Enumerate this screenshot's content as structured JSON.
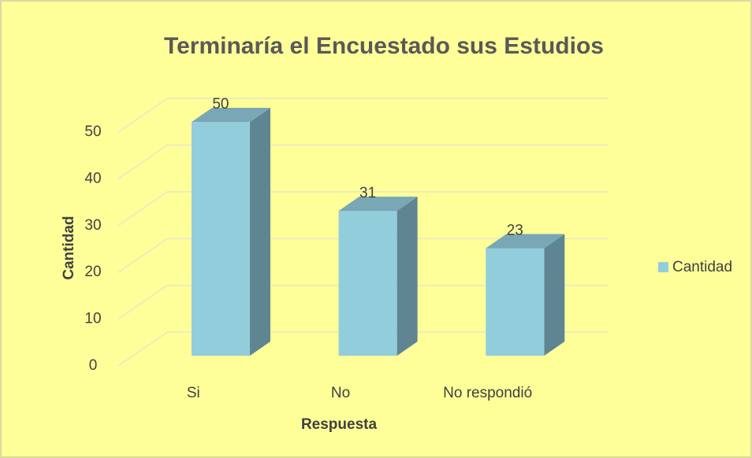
{
  "chart_data": {
    "type": "bar3d",
    "title": "Terminaría el Encuestado sus Estudios",
    "xlabel": "Respuesta",
    "ylabel": "Cantidad",
    "categories": [
      "Si",
      "No",
      "No respondió"
    ],
    "series": [
      {
        "name": "Cantidad",
        "color": "#92cddc",
        "values": [
          50,
          31,
          23
        ]
      }
    ],
    "ylim": [
      0,
      50
    ],
    "yticks": [
      0,
      10,
      20,
      30,
      40,
      50
    ],
    "grid": true,
    "legend": "right"
  }
}
